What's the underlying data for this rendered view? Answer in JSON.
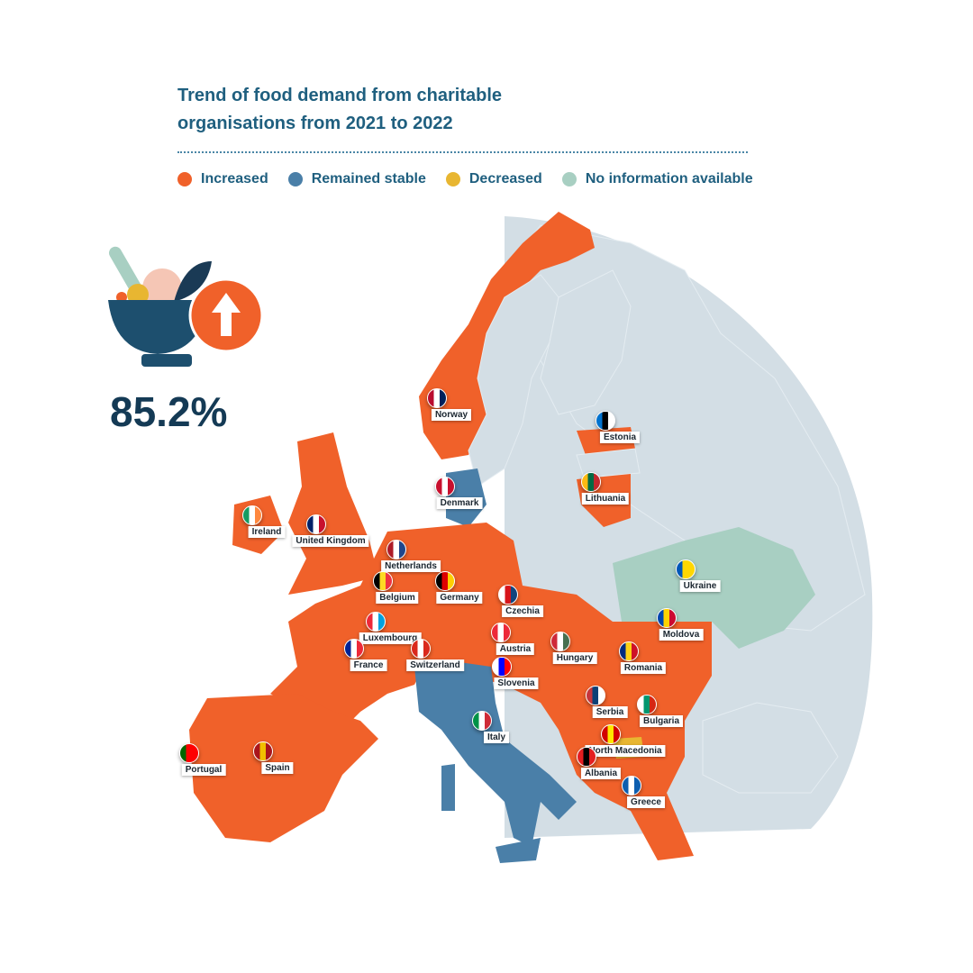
{
  "title_line1": "Trend of food demand from charitable",
  "title_line2": "organisations from 2021 to 2022",
  "legend": [
    {
      "label": "Increased",
      "color": "#f0612a"
    },
    {
      "label": "Remained stable",
      "color": "#4a7fa8"
    },
    {
      "label": "Decreased",
      "color": "#e8b631"
    },
    {
      "label": "No information available",
      "color": "#a8cfc2"
    }
  ],
  "stat": "85.2%",
  "icon": "bowl-with-up-arrow-icon",
  "colors": {
    "increased": "#f0612a",
    "stable": "#4a7fa8",
    "decreased": "#e8b631",
    "no_info": "#a8cfc2",
    "background_land": "#d3dee5"
  },
  "countries": [
    {
      "name": "Norway",
      "status": "increased",
      "flag": [
        "#ba0c2f",
        "#ffffff",
        "#00205b"
      ]
    },
    {
      "name": "Estonia",
      "status": "increased",
      "flag": [
        "#0072ce",
        "#000000",
        "#ffffff"
      ]
    },
    {
      "name": "Lithuania",
      "status": "increased",
      "flag": [
        "#fdb913",
        "#006a44",
        "#c1272d"
      ]
    },
    {
      "name": "Denmark",
      "status": "stable",
      "flag": [
        "#c8102e",
        "#ffffff",
        "#c8102e"
      ]
    },
    {
      "name": "Ireland",
      "status": "increased",
      "flag": [
        "#169b62",
        "#ffffff",
        "#ff883e"
      ]
    },
    {
      "name": "United Kingdom",
      "status": "increased",
      "flag": [
        "#012169",
        "#ffffff",
        "#c8102e"
      ]
    },
    {
      "name": "Netherlands",
      "status": "increased",
      "flag": [
        "#ae1c28",
        "#ffffff",
        "#21468b"
      ]
    },
    {
      "name": "Belgium",
      "status": "increased",
      "flag": [
        "#000000",
        "#fdda24",
        "#ef3340"
      ]
    },
    {
      "name": "Germany",
      "status": "increased",
      "flag": [
        "#000000",
        "#dd0000",
        "#ffce00"
      ]
    },
    {
      "name": "Czechia",
      "status": "increased",
      "flag": [
        "#ffffff",
        "#d7141a",
        "#11457e"
      ]
    },
    {
      "name": "Luxembourg",
      "status": "increased",
      "flag": [
        "#ed2939",
        "#ffffff",
        "#00a1de"
      ]
    },
    {
      "name": "Austria",
      "status": "increased",
      "flag": [
        "#ed2939",
        "#ffffff",
        "#ed2939"
      ]
    },
    {
      "name": "Hungary",
      "status": "increased",
      "flag": [
        "#ce2939",
        "#ffffff",
        "#477050"
      ]
    },
    {
      "name": "Moldova",
      "status": "increased",
      "flag": [
        "#0046ae",
        "#ffd200",
        "#cc092f"
      ]
    },
    {
      "name": "Ukraine",
      "status": "no_info",
      "flag": [
        "#0057b7",
        "#ffd700",
        "#ffd700"
      ]
    },
    {
      "name": "France",
      "status": "increased",
      "flag": [
        "#002395",
        "#ffffff",
        "#ed2939"
      ]
    },
    {
      "name": "Switzerland",
      "status": "increased",
      "flag": [
        "#da291c",
        "#ffffff",
        "#da291c"
      ]
    },
    {
      "name": "Slovenia",
      "status": "increased",
      "flag": [
        "#ffffff",
        "#0000ff",
        "#ff0000"
      ]
    },
    {
      "name": "Romania",
      "status": "increased",
      "flag": [
        "#002b7f",
        "#fcd116",
        "#ce1126"
      ]
    },
    {
      "name": "Serbia",
      "status": "increased",
      "flag": [
        "#c6363c",
        "#0c4076",
        "#ffffff"
      ]
    },
    {
      "name": "Bulgaria",
      "status": "increased",
      "flag": [
        "#ffffff",
        "#00966e",
        "#d62612"
      ]
    },
    {
      "name": "Italy",
      "status": "stable",
      "flag": [
        "#009246",
        "#ffffff",
        "#ce2b37"
      ]
    },
    {
      "name": "North Macedonia",
      "status": "decreased",
      "flag": [
        "#d20000",
        "#ffe600",
        "#d20000"
      ]
    },
    {
      "name": "Albania",
      "status": "increased",
      "flag": [
        "#e41e20",
        "#000000",
        "#e41e20"
      ]
    },
    {
      "name": "Greece",
      "status": "increased",
      "flag": [
        "#0d5eaf",
        "#ffffff",
        "#0d5eaf"
      ]
    },
    {
      "name": "Portugal",
      "status": "increased",
      "flag": [
        "#006600",
        "#ff0000",
        "#ff0000"
      ]
    },
    {
      "name": "Spain",
      "status": "increased",
      "flag": [
        "#aa151b",
        "#f1bf00",
        "#aa151b"
      ]
    }
  ]
}
